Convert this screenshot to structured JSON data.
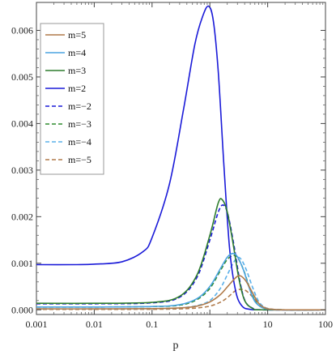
{
  "chart_data": {
    "type": "line",
    "title": "",
    "xlabel": "p",
    "ylabel": "",
    "xscale": "log",
    "xlim": [
      0.001,
      100
    ],
    "ylim": [
      -0.0001,
      0.0066
    ],
    "x_ticks": [
      {
        "value": 0.001,
        "label": "0.001"
      },
      {
        "value": 0.01,
        "label": "0.01"
      },
      {
        "value": 0.1,
        "label": "0.1"
      },
      {
        "value": 1,
        "label": "1"
      },
      {
        "value": 10,
        "label": "10"
      },
      {
        "value": 100,
        "label": "100"
      }
    ],
    "y_ticks": [
      {
        "value": 0.0,
        "label": "0.000"
      },
      {
        "value": 0.001,
        "label": "0.001"
      },
      {
        "value": 0.002,
        "label": "0.002"
      },
      {
        "value": 0.003,
        "label": "0.003"
      },
      {
        "value": 0.004,
        "label": "0.004"
      },
      {
        "value": 0.005,
        "label": "0.005"
      },
      {
        "value": 0.006,
        "label": "0.006"
      }
    ],
    "grid": false,
    "legend_position": "top-left",
    "series": [
      {
        "name": "m=5",
        "color": "#b07a4a",
        "dash": false,
        "points": [
          [
            0.001,
            2e-05
          ],
          [
            0.01,
            2e-05
          ],
          [
            0.1,
            2.5e-05
          ],
          [
            0.3,
            4e-05
          ],
          [
            0.6,
            8e-05
          ],
          [
            1,
            0.00017
          ],
          [
            1.5,
            0.00032
          ],
          [
            2,
            0.00049
          ],
          [
            2.6,
            0.00065
          ],
          [
            3.1,
            0.00073
          ],
          [
            3.6,
            0.00071
          ],
          [
            4.3,
            0.0006
          ],
          [
            5.5,
            0.00036
          ],
          [
            7,
            0.00014
          ],
          [
            9,
            4e-05
          ],
          [
            12,
            1e-05
          ],
          [
            20,
            0.0
          ],
          [
            100,
            0.0
          ]
        ]
      },
      {
        "name": "m=4",
        "color": "#4aa3e0",
        "dash": false,
        "points": [
          [
            0.001,
            6e-05
          ],
          [
            0.01,
            6e-05
          ],
          [
            0.1,
            7e-05
          ],
          [
            0.3,
            0.00011
          ],
          [
            0.6,
            0.00024
          ],
          [
            1,
            0.0005
          ],
          [
            1.5,
            0.00087
          ],
          [
            2,
            0.00113
          ],
          [
            2.5,
            0.00121
          ],
          [
            3,
            0.00114
          ],
          [
            3.8,
            0.00086
          ],
          [
            4.8,
            0.00047
          ],
          [
            6,
            0.00018
          ],
          [
            8,
            5e-05
          ],
          [
            11,
            1e-05
          ],
          [
            20,
            0.0
          ],
          [
            100,
            0.0
          ]
        ]
      },
      {
        "name": "m=3",
        "color": "#2e7d2e",
        "dash": false,
        "points": [
          [
            0.001,
            0.00014
          ],
          [
            0.01,
            0.00014
          ],
          [
            0.1,
            0.00016
          ],
          [
            0.3,
            0.00029
          ],
          [
            0.6,
            0.00075
          ],
          [
            1,
            0.0016
          ],
          [
            1.4,
            0.0023
          ],
          [
            1.65,
            0.00236
          ],
          [
            2,
            0.0021
          ],
          [
            2.5,
            0.00145
          ],
          [
            3.2,
            0.00065
          ],
          [
            4,
            0.0002
          ],
          [
            5.5,
            3e-05
          ],
          [
            8,
            0.0
          ],
          [
            100,
            0.0
          ]
        ]
      },
      {
        "name": "m=2",
        "color": "#1a1ad8",
        "dash": false,
        "points": [
          [
            0.001,
            0.00097
          ],
          [
            0.005,
            0.00097
          ],
          [
            0.01,
            0.00098
          ],
          [
            0.03,
            0.00103
          ],
          [
            0.07,
            0.00125
          ],
          [
            0.1,
            0.00155
          ],
          [
            0.2,
            0.0027
          ],
          [
            0.35,
            0.0043
          ],
          [
            0.55,
            0.0057
          ],
          [
            0.75,
            0.0063
          ],
          [
            0.95,
            0.00652
          ],
          [
            1.15,
            0.0062
          ],
          [
            1.4,
            0.0051
          ],
          [
            1.75,
            0.0031
          ],
          [
            2.2,
            0.0013
          ],
          [
            2.8,
            0.0004
          ],
          [
            3.6,
            8e-05
          ],
          [
            5,
            1e-05
          ],
          [
            8,
            0.0
          ],
          [
            100,
            0.0
          ]
        ]
      },
      {
        "name": "m=−2",
        "color": "#1a1ad8",
        "dash": true,
        "points": [
          [
            0.001,
            0.00013
          ],
          [
            0.01,
            0.00013
          ],
          [
            0.1,
            0.00015
          ],
          [
            0.3,
            0.00027
          ],
          [
            0.6,
            0.0007
          ],
          [
            1,
            0.0015
          ],
          [
            1.4,
            0.0021
          ],
          [
            1.7,
            0.00225
          ],
          [
            2.05,
            0.00205
          ],
          [
            2.6,
            0.0014
          ],
          [
            3.3,
            0.00062
          ],
          [
            4.1,
            0.00018
          ],
          [
            5.6,
            3e-05
          ],
          [
            8,
            0.0
          ],
          [
            100,
            0.0
          ]
        ]
      },
      {
        "name": "m=−3",
        "color": "#2e8b2e",
        "dash": true,
        "points": [
          [
            0.001,
            6e-05
          ],
          [
            0.01,
            6e-05
          ],
          [
            0.1,
            7e-05
          ],
          [
            0.3,
            0.0001
          ],
          [
            0.6,
            0.00022
          ],
          [
            1,
            0.00046
          ],
          [
            1.5,
            0.00083
          ],
          [
            2,
            0.00108
          ],
          [
            2.6,
            0.00117
          ],
          [
            3.1,
            0.0011
          ],
          [
            3.9,
            0.00083
          ],
          [
            4.9,
            0.00046
          ],
          [
            6.2,
            0.00017
          ],
          [
            8,
            5e-05
          ],
          [
            11,
            1e-05
          ],
          [
            20,
            0.0
          ],
          [
            100,
            0.0
          ]
        ]
      },
      {
        "name": "m=−4",
        "color": "#5ab0ea",
        "dash": true,
        "points": [
          [
            0.001,
            2e-05
          ],
          [
            0.01,
            2e-05
          ],
          [
            0.1,
            2.5e-05
          ],
          [
            0.3,
            4e-05
          ],
          [
            0.6,
            9e-05
          ],
          [
            1,
            0.0002
          ],
          [
            1.5,
            0.00045
          ],
          [
            2,
            0.00075
          ],
          [
            2.5,
            0.00099
          ],
          [
            3,
            0.00112
          ],
          [
            3.5,
            0.00108
          ],
          [
            4.3,
            0.00085
          ],
          [
            5.5,
            0.00048
          ],
          [
            7,
            0.00018
          ],
          [
            9,
            5e-05
          ],
          [
            12,
            1e-05
          ],
          [
            20,
            0.0
          ],
          [
            100,
            0.0
          ]
        ]
      },
      {
        "name": "m=−5",
        "color": "#b07a4a",
        "dash": true,
        "points": [
          [
            0.001,
            1e-05
          ],
          [
            0.01,
            1e-05
          ],
          [
            0.1,
            1.2e-05
          ],
          [
            0.3,
            2e-05
          ],
          [
            0.6,
            4e-05
          ],
          [
            1,
            8e-05
          ],
          [
            1.5,
            0.00016
          ],
          [
            2,
            0.00026
          ],
          [
            2.7,
            0.0004
          ],
          [
            3.4,
            0.00044
          ],
          [
            4.1,
            0.00042
          ],
          [
            5,
            0.00033
          ],
          [
            6.2,
            0.0002
          ],
          [
            8,
            8e-05
          ],
          [
            11,
            2e-05
          ],
          [
            20,
            0.0
          ],
          [
            100,
            0.0
          ]
        ]
      }
    ]
  }
}
